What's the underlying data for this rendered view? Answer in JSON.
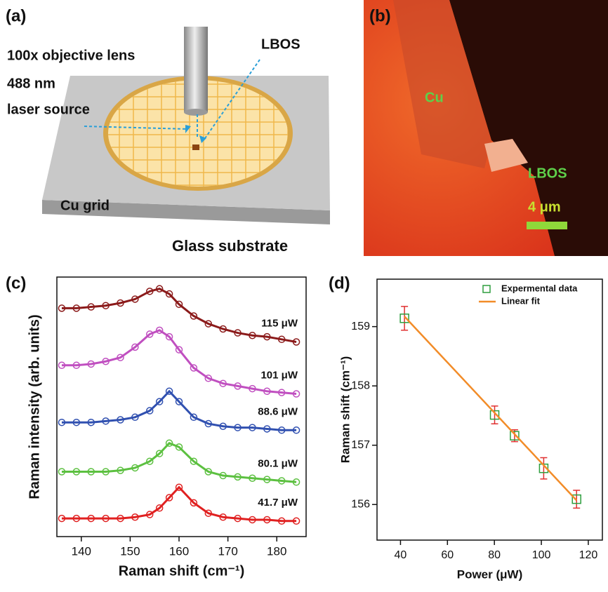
{
  "figure": {
    "panel_labels": [
      "(a)",
      "(b)",
      "(c)",
      "(d)"
    ],
    "schematic": {
      "objective": "100x objective lens",
      "wavelength": "488 nm",
      "source": "laser source",
      "sample": "LBOS",
      "grid": "Cu grid",
      "substrate": "Glass substrate"
    },
    "micrograph": {
      "grid": "Cu",
      "sample": "LBOS",
      "scale_bar": "4 μm"
    }
  },
  "chart_data": [
    {
      "type": "line",
      "x_label": "Raman shift (cm⁻¹)",
      "y_label": "Raman intensity (arb. units)",
      "x": [
        136,
        139,
        142,
        145,
        148,
        151,
        154,
        156,
        158,
        160,
        163,
        166,
        169,
        172,
        175,
        178,
        181,
        184
      ],
      "xlim": [
        135,
        186
      ],
      "xticks": [
        140,
        150,
        160,
        170,
        180
      ],
      "ylim": [
        0,
        10
      ],
      "series": [
        {
          "name": "115 μW",
          "color": "#8b1a1a",
          "values": [
            8.8,
            8.8,
            8.85,
            8.9,
            9.0,
            9.15,
            9.45,
            9.55,
            9.35,
            8.95,
            8.5,
            8.2,
            8.0,
            7.85,
            7.75,
            7.7,
            7.6,
            7.5
          ]
        },
        {
          "name": "101 μW",
          "color": "#c04fc0",
          "values": [
            6.6,
            6.6,
            6.65,
            6.75,
            6.9,
            7.3,
            7.8,
            7.95,
            7.7,
            7.2,
            6.5,
            6.1,
            5.9,
            5.8,
            5.7,
            5.6,
            5.55,
            5.5
          ]
        },
        {
          "name": "88.6 μW",
          "color": "#3050b0",
          "values": [
            4.4,
            4.4,
            4.4,
            4.45,
            4.5,
            4.6,
            4.85,
            5.2,
            5.6,
            5.2,
            4.6,
            4.35,
            4.25,
            4.2,
            4.2,
            4.15,
            4.1,
            4.1
          ]
        },
        {
          "name": "80.1 μW",
          "color": "#5cc040",
          "values": [
            2.5,
            2.5,
            2.5,
            2.5,
            2.55,
            2.65,
            2.9,
            3.2,
            3.6,
            3.45,
            2.9,
            2.5,
            2.35,
            2.3,
            2.25,
            2.2,
            2.15,
            2.1
          ]
        },
        {
          "name": "41.7 μW",
          "color": "#e02020",
          "values": [
            0.7,
            0.7,
            0.7,
            0.7,
            0.7,
            0.75,
            0.85,
            1.1,
            1.5,
            1.9,
            1.3,
            0.9,
            0.75,
            0.7,
            0.65,
            0.65,
            0.6,
            0.6
          ]
        }
      ]
    },
    {
      "type": "scatter",
      "x_label": "Power (μW)",
      "y_label": "Raman shift (cm⁻¹)",
      "xlim": [
        30,
        126
      ],
      "xticks": [
        40,
        60,
        80,
        100,
        120
      ],
      "ylim": [
        155.4,
        159.8
      ],
      "yticks": [
        156,
        157,
        158,
        159
      ],
      "legend": "upper right",
      "series": [
        {
          "name": "Expermental data",
          "color": "#2e9e3e",
          "error_color": "#e03030",
          "x": [
            41.7,
            80.1,
            88.6,
            101,
            115
          ],
          "values": [
            159.14,
            157.51,
            157.16,
            156.61,
            156.09
          ],
          "errors": [
            0.2,
            0.15,
            0.1,
            0.18,
            0.15
          ]
        },
        {
          "name": "Linear fit",
          "type": "line",
          "color": "#f28c28",
          "x": [
            41.7,
            115
          ],
          "values": [
            159.17,
            156.07
          ]
        }
      ]
    }
  ]
}
